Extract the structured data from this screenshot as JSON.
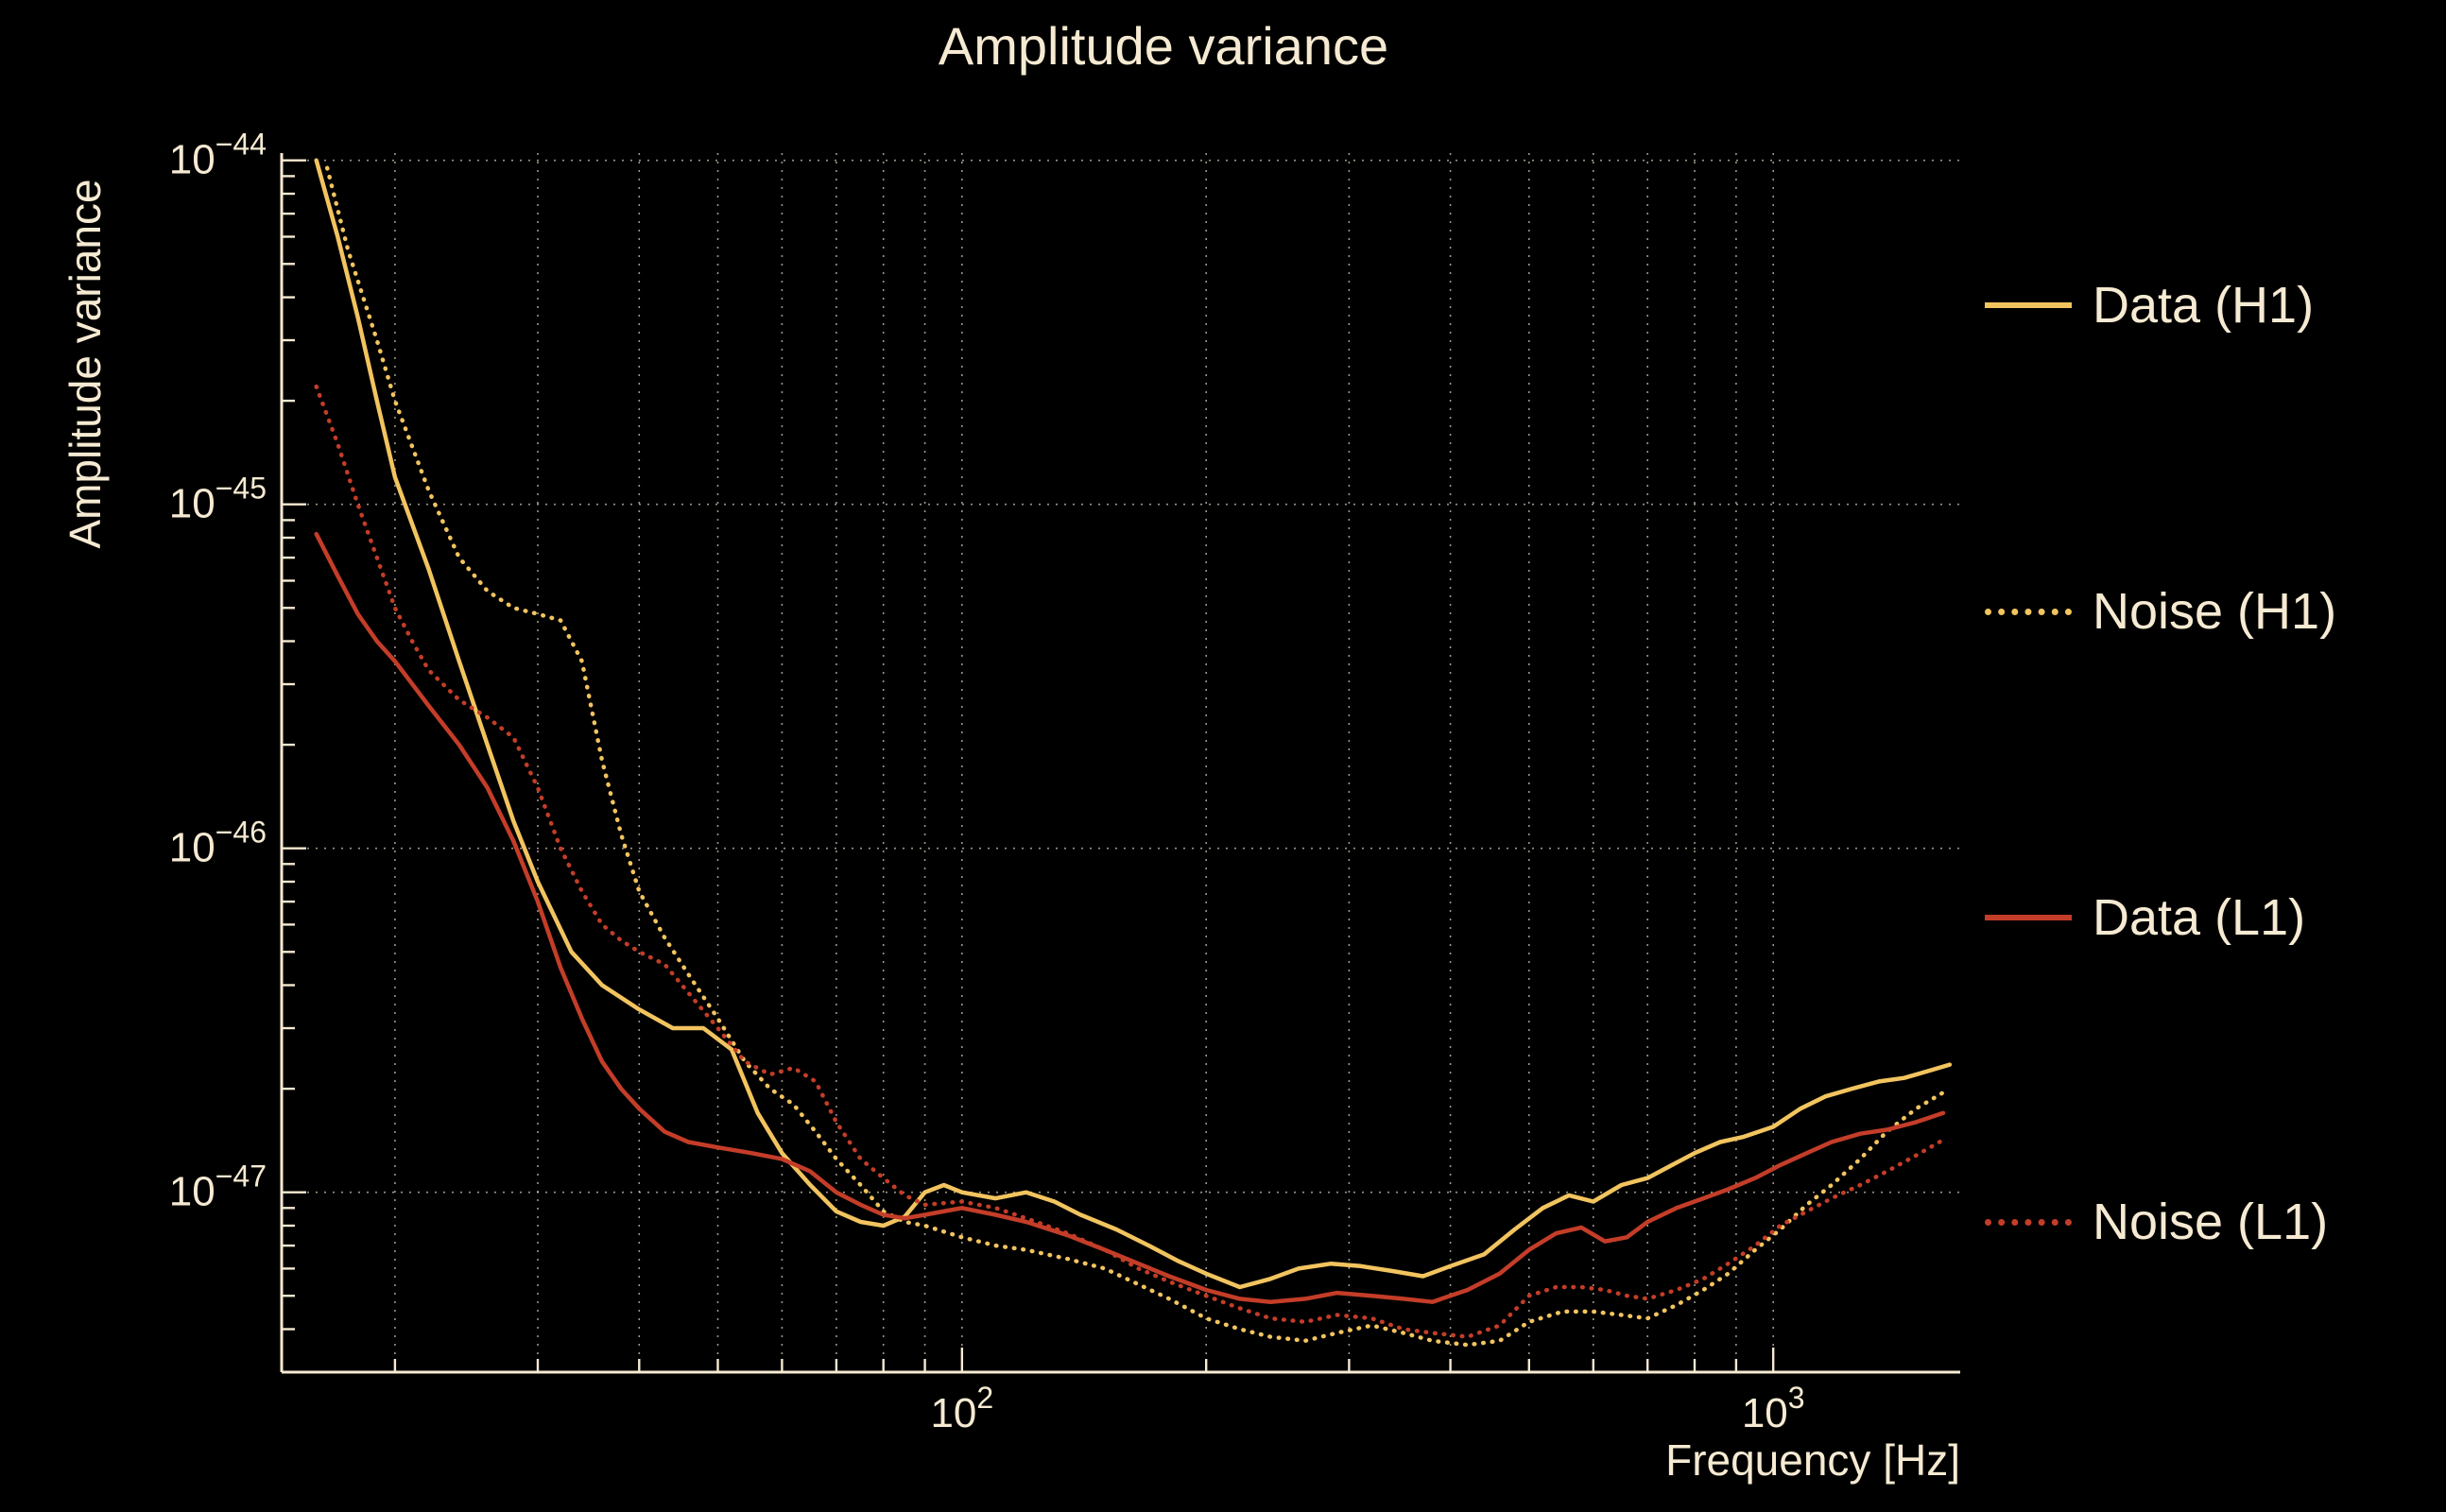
{
  "colors": {
    "background": "#000000",
    "text": "#f6ead2",
    "grid": "#efe6cf",
    "gold": "#f2c45f",
    "red": "#c43d28"
  },
  "chart_data": {
    "type": "line",
    "title": "Amplitude variance",
    "xlabel": "Frequency [Hz]",
    "ylabel": "Amplitude variance",
    "xscale": "log",
    "yscale": "log",
    "xlim": [
      14.5,
      1700
    ],
    "ylim": [
      3e-48,
      1.05e-44
    ],
    "grid": true,
    "legend_position": "right",
    "x_major_ticks": [
      100,
      1000
    ],
    "x_gridlines": [
      20,
      30,
      40,
      50,
      60,
      70,
      80,
      90,
      100,
      200,
      300,
      400,
      500,
      600,
      700,
      800,
      900,
      1000
    ],
    "y_major_ticks_exp": [
      -44,
      -45,
      -46,
      -47
    ],
    "series": [
      {
        "name": "Data (H1)",
        "color": "#f2c45f",
        "style": "solid",
        "points": [
          [
            16,
            1e-44
          ],
          [
            17,
            6e-45
          ],
          [
            18,
            3.5e-45
          ],
          [
            19,
            2e-45
          ],
          [
            20,
            1.2e-45
          ],
          [
            22,
            6.5e-46
          ],
          [
            24,
            3.5e-46
          ],
          [
            26,
            2e-46
          ],
          [
            28,
            1.2e-46
          ],
          [
            30,
            8e-47
          ],
          [
            33,
            5e-47
          ],
          [
            36,
            4e-47
          ],
          [
            40,
            3.4e-47
          ],
          [
            44,
            3e-47
          ],
          [
            48,
            3e-47
          ],
          [
            52,
            2.6e-47
          ],
          [
            56,
            1.7e-47
          ],
          [
            60,
            1.3e-47
          ],
          [
            65,
            1.05e-47
          ],
          [
            70,
            8.8e-48
          ],
          [
            75,
            8.2e-48
          ],
          [
            80,
            8e-48
          ],
          [
            85,
            8.5e-48
          ],
          [
            90,
            1e-47
          ],
          [
            95,
            1.05e-47
          ],
          [
            100,
            1e-47
          ],
          [
            110,
            9.6e-48
          ],
          [
            120,
            1e-47
          ],
          [
            130,
            9.4e-48
          ],
          [
            140,
            8.6e-48
          ],
          [
            155,
            7.8e-48
          ],
          [
            170,
            7e-48
          ],
          [
            185,
            6.3e-48
          ],
          [
            200,
            5.8e-48
          ],
          [
            220,
            5.3e-48
          ],
          [
            240,
            5.6e-48
          ],
          [
            260,
            6e-48
          ],
          [
            285,
            6.2e-48
          ],
          [
            310,
            6.1e-48
          ],
          [
            340,
            5.9e-48
          ],
          [
            370,
            5.7e-48
          ],
          [
            400,
            6.1e-48
          ],
          [
            440,
            6.6e-48
          ],
          [
            480,
            7.8e-48
          ],
          [
            520,
            9e-48
          ],
          [
            560,
            9.8e-48
          ],
          [
            600,
            9.4e-48
          ],
          [
            650,
            1.05e-47
          ],
          [
            700,
            1.1e-47
          ],
          [
            750,
            1.2e-47
          ],
          [
            800,
            1.3e-47
          ],
          [
            860,
            1.4e-47
          ],
          [
            920,
            1.45e-47
          ],
          [
            1000,
            1.55e-47
          ],
          [
            1080,
            1.75e-47
          ],
          [
            1160,
            1.9e-47
          ],
          [
            1250,
            2e-47
          ],
          [
            1350,
            2.1e-47
          ],
          [
            1450,
            2.15e-47
          ],
          [
            1550,
            2.25e-47
          ],
          [
            1650,
            2.35e-47
          ]
        ]
      },
      {
        "name": "Noise (H1)",
        "color": "#f2c45f",
        "style": "dotted",
        "points": [
          [
            16.5,
            9.5e-45
          ],
          [
            17.5,
            5.5e-45
          ],
          [
            19,
            3e-45
          ],
          [
            20,
            2e-45
          ],
          [
            22,
            1.1e-45
          ],
          [
            24,
            7e-46
          ],
          [
            26,
            5.6e-46
          ],
          [
            28,
            5e-46
          ],
          [
            30,
            4.8e-46
          ],
          [
            32,
            4.6e-46
          ],
          [
            34,
            3.5e-46
          ],
          [
            36,
            1.8e-46
          ],
          [
            38,
            1.1e-46
          ],
          [
            40,
            7.5e-47
          ],
          [
            43,
            5.5e-47
          ],
          [
            46,
            4.3e-47
          ],
          [
            50,
            3.2e-47
          ],
          [
            54,
            2.4e-47
          ],
          [
            58,
            2e-47
          ],
          [
            62,
            1.8e-47
          ],
          [
            66,
            1.5e-47
          ],
          [
            70,
            1.25e-47
          ],
          [
            75,
            1.05e-47
          ],
          [
            80,
            8.8e-48
          ],
          [
            85,
            8.2e-48
          ],
          [
            90,
            8e-48
          ],
          [
            100,
            7.4e-48
          ],
          [
            110,
            7e-48
          ],
          [
            120,
            6.8e-48
          ],
          [
            135,
            6.4e-48
          ],
          [
            150,
            6e-48
          ],
          [
            165,
            5.4e-48
          ],
          [
            180,
            4.9e-48
          ],
          [
            200,
            4.3e-48
          ],
          [
            220,
            4e-48
          ],
          [
            240,
            3.8e-48
          ],
          [
            265,
            3.7e-48
          ],
          [
            290,
            3.9e-48
          ],
          [
            320,
            4.1e-48
          ],
          [
            350,
            3.9e-48
          ],
          [
            380,
            3.7e-48
          ],
          [
            420,
            3.6e-48
          ],
          [
            460,
            3.7e-48
          ],
          [
            500,
            4.2e-48
          ],
          [
            550,
            4.5e-48
          ],
          [
            600,
            4.5e-48
          ],
          [
            650,
            4.4e-48
          ],
          [
            700,
            4.3e-48
          ],
          [
            760,
            4.7e-48
          ],
          [
            820,
            5.2e-48
          ],
          [
            880,
            5.8e-48
          ],
          [
            950,
            6.8e-48
          ],
          [
            1020,
            7.8e-48
          ],
          [
            1100,
            9.2e-48
          ],
          [
            1180,
            1.05e-47
          ],
          [
            1280,
            1.25e-47
          ],
          [
            1380,
            1.5e-47
          ],
          [
            1500,
            1.75e-47
          ],
          [
            1620,
            1.95e-47
          ]
        ]
      },
      {
        "name": "Data (L1)",
        "color": "#c43d28",
        "style": "solid",
        "points": [
          [
            16,
            8.2e-46
          ],
          [
            17,
            6.2e-46
          ],
          [
            18,
            4.8e-46
          ],
          [
            19,
            4e-46
          ],
          [
            20,
            3.5e-46
          ],
          [
            22,
            2.6e-46
          ],
          [
            24,
            2e-46
          ],
          [
            26,
            1.5e-46
          ],
          [
            28,
            1.05e-46
          ],
          [
            30,
            7e-47
          ],
          [
            32,
            4.5e-47
          ],
          [
            34,
            3.2e-47
          ],
          [
            36,
            2.4e-47
          ],
          [
            38,
            2e-47
          ],
          [
            40,
            1.75e-47
          ],
          [
            43,
            1.5e-47
          ],
          [
            46,
            1.4e-47
          ],
          [
            50,
            1.35e-47
          ],
          [
            55,
            1.3e-47
          ],
          [
            60,
            1.25e-47
          ],
          [
            65,
            1.15e-47
          ],
          [
            70,
            1e-47
          ],
          [
            75,
            9.2e-48
          ],
          [
            80,
            8.6e-48
          ],
          [
            85,
            8.4e-48
          ],
          [
            90,
            8.6e-48
          ],
          [
            100,
            9e-48
          ],
          [
            110,
            8.6e-48
          ],
          [
            120,
            8.2e-48
          ],
          [
            135,
            7.5e-48
          ],
          [
            150,
            6.8e-48
          ],
          [
            165,
            6.2e-48
          ],
          [
            180,
            5.7e-48
          ],
          [
            200,
            5.2e-48
          ],
          [
            220,
            4.9e-48
          ],
          [
            240,
            4.8e-48
          ],
          [
            265,
            4.9e-48
          ],
          [
            290,
            5.1e-48
          ],
          [
            320,
            5e-48
          ],
          [
            350,
            4.9e-48
          ],
          [
            380,
            4.8e-48
          ],
          [
            420,
            5.2e-48
          ],
          [
            460,
            5.8e-48
          ],
          [
            500,
            6.8e-48
          ],
          [
            540,
            7.6e-48
          ],
          [
            580,
            7.9e-48
          ],
          [
            620,
            7.2e-48
          ],
          [
            660,
            7.4e-48
          ],
          [
            700,
            8.2e-48
          ],
          [
            760,
            9e-48
          ],
          [
            820,
            9.6e-48
          ],
          [
            880,
            1.02e-47
          ],
          [
            950,
            1.1e-47
          ],
          [
            1020,
            1.2e-47
          ],
          [
            1100,
            1.3e-47
          ],
          [
            1180,
            1.4e-47
          ],
          [
            1280,
            1.48e-47
          ],
          [
            1380,
            1.52e-47
          ],
          [
            1500,
            1.6e-47
          ],
          [
            1620,
            1.7e-47
          ]
        ]
      },
      {
        "name": "Noise (L1)",
        "color": "#c43d28",
        "style": "dotted",
        "points": [
          [
            16,
            2.2e-45
          ],
          [
            17,
            1.5e-45
          ],
          [
            18,
            1e-45
          ],
          [
            19,
            7e-46
          ],
          [
            20,
            5e-46
          ],
          [
            21,
            4e-46
          ],
          [
            22,
            3.3e-46
          ],
          [
            24,
            2.7e-46
          ],
          [
            26,
            2.4e-46
          ],
          [
            28,
            2.1e-46
          ],
          [
            30,
            1.5e-46
          ],
          [
            32,
            1e-46
          ],
          [
            34,
            7.5e-47
          ],
          [
            36,
            6e-47
          ],
          [
            38,
            5.4e-47
          ],
          [
            40,
            5e-47
          ],
          [
            43,
            4.6e-47
          ],
          [
            46,
            3.8e-47
          ],
          [
            50,
            3e-47
          ],
          [
            54,
            2.4e-47
          ],
          [
            58,
            2.2e-47
          ],
          [
            62,
            2.3e-47
          ],
          [
            66,
            2.1e-47
          ],
          [
            70,
            1.6e-47
          ],
          [
            75,
            1.25e-47
          ],
          [
            80,
            1.1e-47
          ],
          [
            85,
            9.8e-48
          ],
          [
            90,
            9.2e-48
          ],
          [
            100,
            9.4e-48
          ],
          [
            110,
            9e-48
          ],
          [
            120,
            8.4e-48
          ],
          [
            135,
            7.6e-48
          ],
          [
            150,
            6.8e-48
          ],
          [
            165,
            6e-48
          ],
          [
            180,
            5.5e-48
          ],
          [
            200,
            5e-48
          ],
          [
            220,
            4.6e-48
          ],
          [
            240,
            4.3e-48
          ],
          [
            265,
            4.2e-48
          ],
          [
            290,
            4.4e-48
          ],
          [
            320,
            4.3e-48
          ],
          [
            350,
            4e-48
          ],
          [
            380,
            3.9e-48
          ],
          [
            420,
            3.8e-48
          ],
          [
            460,
            4.1e-48
          ],
          [
            500,
            5e-48
          ],
          [
            540,
            5.3e-48
          ],
          [
            580,
            5.3e-48
          ],
          [
            620,
            5.2e-48
          ],
          [
            660,
            5e-48
          ],
          [
            700,
            4.9e-48
          ],
          [
            760,
            5.2e-48
          ],
          [
            820,
            5.6e-48
          ],
          [
            880,
            6.2e-48
          ],
          [
            950,
            7e-48
          ],
          [
            1020,
            8e-48
          ],
          [
            1100,
            8.8e-48
          ],
          [
            1180,
            9.6e-48
          ],
          [
            1280,
            1.05e-47
          ],
          [
            1380,
            1.15e-47
          ],
          [
            1500,
            1.28e-47
          ],
          [
            1620,
            1.42e-47
          ]
        ]
      }
    ]
  }
}
